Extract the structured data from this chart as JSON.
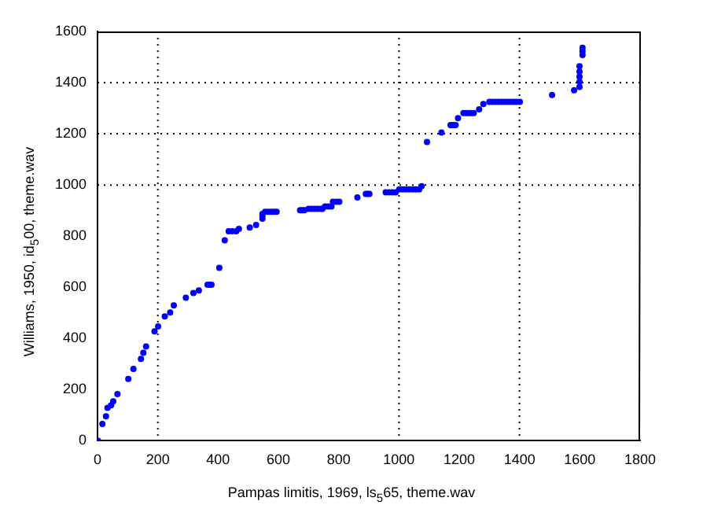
{
  "chart_data": {
    "type": "scatter",
    "xlabel": "Pampas limitis, 1969, ls$_{5}$65, theme.wav",
    "ylabel": "Williams, 1950, id$_{5}$00, theme.wav",
    "xlim": [
      0,
      1800
    ],
    "xticks": [
      0,
      200,
      400,
      600,
      800,
      1000,
      1200,
      1400,
      1600,
      1800
    ],
    "ylim": [
      0,
      1600
    ],
    "yticks": [
      0,
      200,
      400,
      600,
      800,
      1000,
      1200,
      1400,
      1600
    ],
    "grid": false,
    "marker": "circle",
    "legend": false,
    "ref_lines": [
      {
        "axis": "x",
        "value": 200,
        "color": "#000000",
        "line_style": "dotted"
      },
      {
        "axis": "x",
        "value": 1000,
        "color": "#000000",
        "line_style": "dotted"
      },
      {
        "axis": "x",
        "value": 1400,
        "color": "#000000",
        "line_style": "dotted"
      },
      {
        "axis": "y",
        "value": 1000,
        "color": "#000000",
        "line_style": "dotted"
      },
      {
        "axis": "y",
        "value": 1200,
        "color": "#000000",
        "line_style": "dotted"
      },
      {
        "axis": "y",
        "value": 1400,
        "color": "#000000",
        "line_style": "dotted"
      }
    ],
    "series": [
      {
        "color": "#0000ff",
        "x": [
          2,
          16,
          28,
          33,
          45,
          52,
          66,
          102,
          119,
          144,
          152,
          161,
          189,
          201,
          223,
          241,
          253,
          293,
          318,
          336,
          365,
          372,
          378,
          404,
          422,
          435,
          447,
          460,
          469,
          505,
          526,
          547,
          547,
          547,
          556,
          566,
          576,
          586,
          594,
          672,
          679,
          686,
          700,
          710,
          720,
          730,
          740,
          746,
          755,
          766,
          776,
          781,
          792,
          802,
          862,
          890,
          896,
          902,
          956,
          967,
          978,
          989,
          1001,
          1012,
          1023,
          1034,
          1045,
          1056,
          1067,
          1075,
          1093,
          1141,
          1171,
          1180,
          1188,
          1196,
          1214,
          1223,
          1232,
          1240,
          1248,
          1266,
          1280,
          1300,
          1310,
          1320,
          1330,
          1340,
          1350,
          1360,
          1370,
          1380,
          1390,
          1401,
          1508,
          1581,
          1599,
          1599,
          1599,
          1599,
          1599,
          1609,
          1609,
          1609
        ],
        "values": [
          0,
          66,
          96,
          129,
          139,
          154,
          183,
          242,
          281,
          320,
          344,
          369,
          428,
          447,
          486,
          502,
          529,
          559,
          578,
          588,
          610,
          610,
          610,
          676,
          784,
          819,
          819,
          819,
          828,
          834,
          844,
          868,
          878,
          887,
          895,
          895,
          895,
          895,
          895,
          901,
          901,
          901,
          907,
          907,
          907,
          907,
          907,
          907,
          916,
          916,
          916,
          934,
          934,
          934,
          951,
          965,
          965,
          965,
          971,
          971,
          971,
          971,
          983,
          983,
          983,
          983,
          983,
          983,
          983,
          995,
          1168,
          1205,
          1234,
          1234,
          1234,
          1261,
          1281,
          1281,
          1281,
          1281,
          1281,
          1296,
          1316,
          1325,
          1325,
          1325,
          1325,
          1325,
          1325,
          1325,
          1325,
          1325,
          1325,
          1325,
          1352,
          1370,
          1383,
          1403,
          1423,
          1443,
          1464,
          1508,
          1522,
          1536
        ]
      }
    ]
  }
}
